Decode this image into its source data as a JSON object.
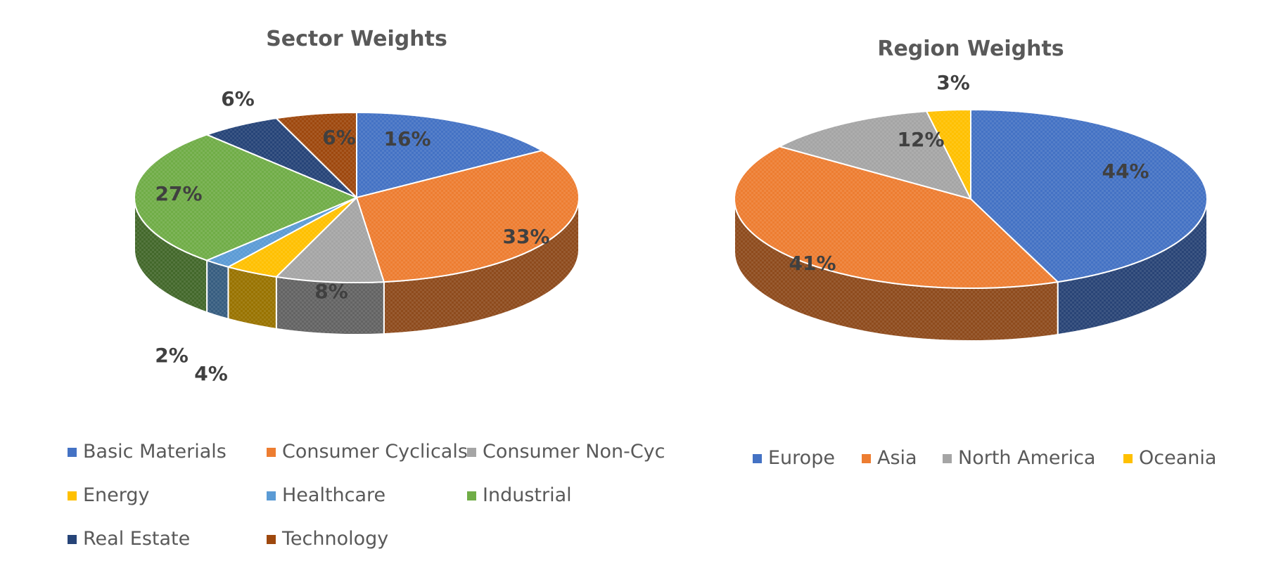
{
  "chart_data": [
    {
      "type": "pie",
      "title": "Sector Weights",
      "legend_position": "bottom",
      "slices": [
        {
          "label": "Basic Materials",
          "value": 16,
          "display": "16%",
          "color": "#4472C4"
        },
        {
          "label": "Consumer Cyclicals",
          "value": 33,
          "display": "33%",
          "color": "#ED7D31"
        },
        {
          "label": "Consumer Non-Cyc",
          "value": 8,
          "display": "8%",
          "color": "#A5A5A5"
        },
        {
          "label": "Energy",
          "value": 4,
          "display": "4%",
          "color": "#FFC000"
        },
        {
          "label": "Healthcare",
          "value": 2,
          "display": "2%",
          "color": "#5B9BD5"
        },
        {
          "label": "Industrial",
          "value": 27,
          "display": "27%",
          "color": "#70AD47"
        },
        {
          "label": "Real Estate",
          "value": 6,
          "display": "6%",
          "color": "#264478"
        },
        {
          "label": "Technology",
          "value": 6,
          "display": "6%",
          "color": "#9E480E"
        }
      ]
    },
    {
      "type": "pie",
      "title": "Region Weights",
      "legend_position": "bottom",
      "slices": [
        {
          "label": "Europe",
          "value": 44,
          "display": "44%",
          "color": "#4472C4"
        },
        {
          "label": "Asia",
          "value": 41,
          "display": "41%",
          "color": "#ED7D31"
        },
        {
          "label": "North America",
          "value": 12,
          "display": "12%",
          "color": "#A5A5A5"
        },
        {
          "label": "Oceania",
          "value": 3,
          "display": "3%",
          "color": "#FFC000"
        }
      ]
    }
  ]
}
